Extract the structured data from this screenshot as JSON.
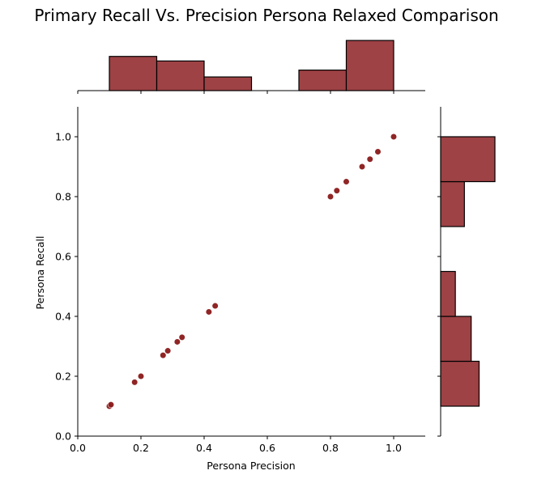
{
  "chart_data": {
    "type": "scatter",
    "title": "Primary Recall Vs. Precision Persona Relaxed Comparison",
    "xlabel": "Persona Precision",
    "ylabel": "Persona Recall",
    "xlim": [
      0.0,
      1.1
    ],
    "ylim": [
      0.0,
      1.1
    ],
    "xticks": [
      "0.0",
      "0.2",
      "0.4",
      "0.6",
      "0.8",
      "1.0"
    ],
    "yticks": [
      "0.0",
      "0.2",
      "0.4",
      "0.6",
      "0.8",
      "1.0"
    ],
    "grid": false,
    "colors": {
      "point": "#8b1a1a",
      "bar_fill": "#9e4245",
      "bar_edge": "#000000"
    },
    "points": [
      {
        "x": 0.1,
        "y": 0.1
      },
      {
        "x": 0.105,
        "y": 0.105
      },
      {
        "x": 0.18,
        "y": 0.18
      },
      {
        "x": 0.2,
        "y": 0.2
      },
      {
        "x": 0.27,
        "y": 0.27
      },
      {
        "x": 0.285,
        "y": 0.285
      },
      {
        "x": 0.315,
        "y": 0.315
      },
      {
        "x": 0.33,
        "y": 0.33
      },
      {
        "x": 0.415,
        "y": 0.415
      },
      {
        "x": 0.435,
        "y": 0.435
      },
      {
        "x": 0.8,
        "y": 0.8
      },
      {
        "x": 0.82,
        "y": 0.82
      },
      {
        "x": 0.85,
        "y": 0.85
      },
      {
        "x": 0.9,
        "y": 0.9
      },
      {
        "x": 0.925,
        "y": 0.925
      },
      {
        "x": 0.95,
        "y": 0.95
      },
      {
        "x": 1.0,
        "y": 1.0
      }
    ],
    "x_histogram": {
      "bin_edges": [
        0.1,
        0.25,
        0.4,
        0.55,
        0.7,
        0.85,
        1.0
      ],
      "counts": [
        3,
        2.6,
        1.2,
        0,
        1.8,
        4.4
      ]
    },
    "y_histogram": {
      "bin_edges": [
        0.1,
        0.25,
        0.4,
        0.55,
        0.7,
        0.85,
        1.0
      ],
      "counts": [
        3.4,
        2.7,
        1.3,
        0,
        2.1,
        4.8
      ]
    }
  }
}
